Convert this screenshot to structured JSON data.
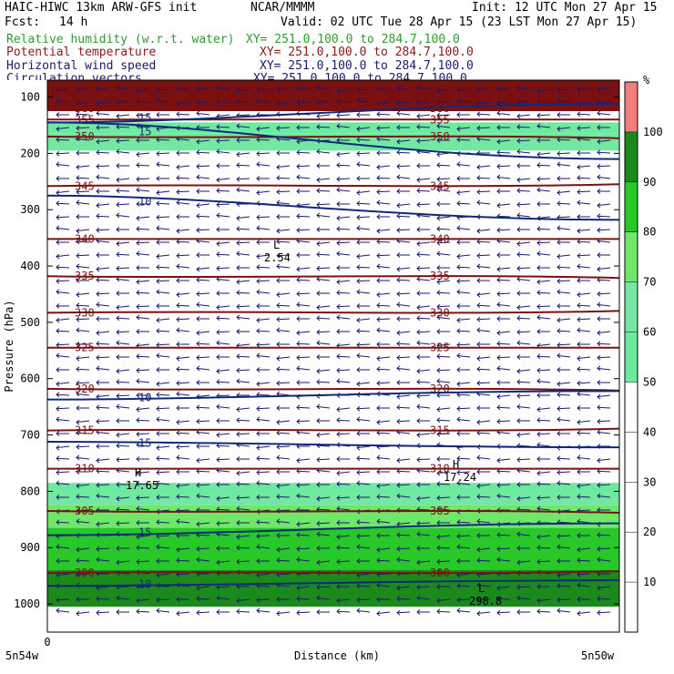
{
  "header": {
    "model": "HAIC-HIWC 13km ARW-GFS init",
    "org": "NCAR/MMMM",
    "init": "Init: 12 UTC Mon 27 Apr 15",
    "fcst_label": "Fcst:",
    "fcst_value": "14 h",
    "valid": "Valid: 02 UTC Tue 28 Apr 15 (23 LST Mon 27 Apr 15)",
    "fields": [
      {
        "name": "Relative humidity (w.r.t. water)",
        "xy": "XY= 251.0,100.0 to 284.7,100.0",
        "color": "#2e9b2e"
      },
      {
        "name": "Potential temperature",
        "xy": "XY= 251.0,100.0 to 284.7,100.0",
        "color": "#8b1a1a"
      },
      {
        "name": "Horizontal wind speed",
        "xy": "XY= 251.0,100.0 to 284.7,100.0",
        "color": "#1a1a6e"
      },
      {
        "name": "Circulation vectors",
        "xy": "XY= 251.0,100.0 to 284.7,100.0",
        "color": "#1a1a6e"
      }
    ]
  },
  "chart_data": {
    "type": "heatmap",
    "title": "",
    "xlabel": "Distance (km)",
    "ylabel": "Pressure (hPa)",
    "x_left_label": "5n54w",
    "x_right_label": "5n50w",
    "x_zero": "0",
    "yticks": [
      100,
      200,
      300,
      400,
      500,
      600,
      700,
      800,
      900,
      1000
    ],
    "ylim": [
      1050,
      70
    ],
    "colorbar": {
      "unit": "%",
      "ticks": [
        10,
        20,
        30,
        40,
        50,
        60,
        70,
        80,
        90,
        100
      ],
      "levels": [
        {
          "from": 50,
          "to": 60,
          "color": "#6eeaa0"
        },
        {
          "from": 60,
          "to": 70,
          "color": "#74e8a2"
        },
        {
          "from": 70,
          "to": 80,
          "color": "#6fe86a"
        },
        {
          "from": 80,
          "to": 90,
          "color": "#27c827"
        },
        {
          "from": 90,
          "to": 100,
          "color": "#1a8a1a"
        },
        {
          "from": 100,
          "to": 110,
          "color": "#f08080"
        }
      ]
    },
    "theta_contours": [
      {
        "label": "360",
        "p": 120
      },
      {
        "label": "355",
        "p": 140
      },
      {
        "label": "350",
        "p": 170
      },
      {
        "label": "345",
        "p": 258
      },
      {
        "label": "340",
        "p": 352
      },
      {
        "label": "335",
        "p": 418
      },
      {
        "label": "330",
        "p": 483
      },
      {
        "label": "325",
        "p": 545
      },
      {
        "label": "320",
        "p": 618
      },
      {
        "label": "315",
        "p": 692
      },
      {
        "label": "310",
        "p": 760
      },
      {
        "label": "305",
        "p": 835
      },
      {
        "label": "300",
        "p": 945
      },
      {
        "label": "298.8",
        "p": 1000
      }
    ],
    "wind_contours": [
      {
        "label": "15",
        "p_left": 145,
        "p_right": 112
      },
      {
        "label": "15",
        "p_left": 145,
        "p_right": 210
      },
      {
        "label": "10",
        "p_left": 275,
        "p_right": 318
      },
      {
        "label": "10",
        "p_left": 637,
        "p_right": 622
      },
      {
        "label": "15",
        "p_left": 712,
        "p_right": 722
      },
      {
        "label": "15",
        "p_left": 878,
        "p_right": 857
      },
      {
        "label": "10",
        "p_left": 968,
        "p_right": 958
      }
    ],
    "annotations": [
      {
        "symbol": "L",
        "value": "2.54",
        "p": 385
      },
      {
        "symbol": "H",
        "value": "17.65",
        "p": 790
      },
      {
        "symbol": "H",
        "value": "17.24",
        "p": 775
      },
      {
        "symbol": "L",
        "value": "298.8",
        "p": 995
      }
    ],
    "rh_bands": [
      {
        "p_top": 70,
        "p_bottom": 125,
        "rh": 105
      },
      {
        "p_top": 145,
        "p_bottom": 165,
        "rh": 55
      },
      {
        "p_top": 165,
        "p_bottom": 195,
        "rh": 65
      },
      {
        "p_top": 785,
        "p_bottom": 805,
        "rh": 55
      },
      {
        "p_top": 805,
        "p_bottom": 825,
        "rh": 65
      },
      {
        "p_top": 825,
        "p_bottom": 865,
        "rh": 75
      },
      {
        "p_top": 865,
        "p_bottom": 940,
        "rh": 85
      },
      {
        "p_top": 940,
        "p_bottom": 1005,
        "rh": 95
      }
    ]
  }
}
